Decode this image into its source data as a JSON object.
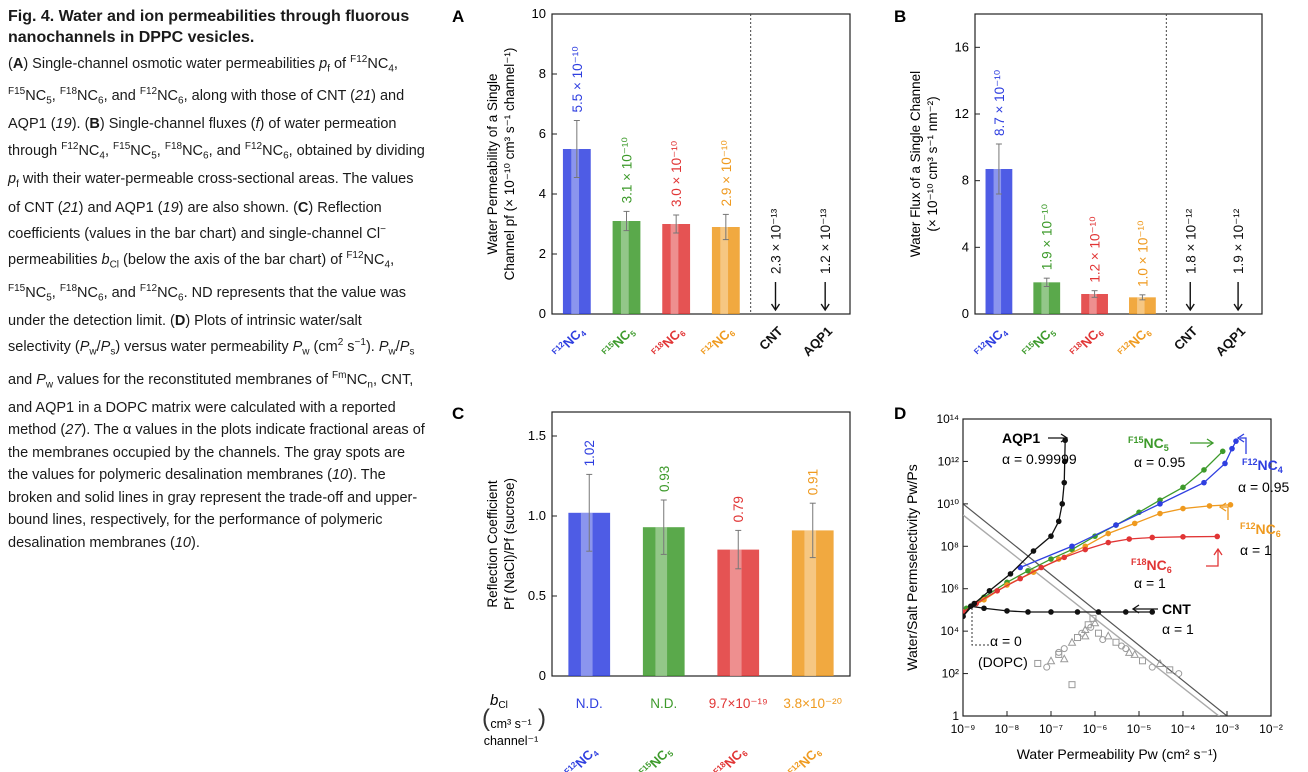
{
  "caption": {
    "title": "Fig. 4. Water and ion permeabilities through fluorous nanochannels in DPPC vesicles.",
    "body_html": "(<b>A</b>) Single-channel osmotic water permeabilities <i>p</i><sub>f</sub> of <sup>F12</sup>NC<sub>4</sub>, <sup>F15</sup>NC<sub>5</sub>, <sup>F18</sup>NC<sub>6</sub>, and <sup>F12</sup>NC<sub>6</sub>, along with those of CNT (<i>21</i>) and AQP1 (<i>19</i>). (<b>B</b>) Single-channel fluxes (<i>f</i>) of water permeation through <sup>F12</sup>NC<sub>4</sub>, <sup>F15</sup>NC<sub>5</sub>, <sup>F18</sup>NC<sub>6</sub>, and <sup>F12</sup>NC<sub>6</sub>, obtained by dividing <i>p</i><sub>f</sub> with their water-permeable cross-sectional areas. The values of CNT (<i>21</i>) and AQP1 (<i>19</i>) are also shown. (<b>C</b>) Reflection coefficients (values in the bar chart) and single-channel Cl<sup>−</sup> permeabilities <i>b</i><sub>Cl</sub> (below the axis of the bar chart) of <sup>F12</sup>NC<sub>4</sub>, <sup>F15</sup>NC<sub>5</sub>, <sup>F18</sup>NC<sub>6</sub>, and <sup>F12</sup>NC<sub>6</sub>. ND represents that the value was under the detection limit. (<b>D</b>) Plots of intrinsic water/salt selectivity (<i>P</i><sub>w</sub>/<i>P</i><sub>s</sub>) versus water permeability <i>P</i><sub>w</sub> (cm<sup>2</sup> s<sup>−1</sup>). <i>P</i><sub>w</sub>/<i>P</i><sub>s</sub> and <i>P</i><sub>w</sub> values for the reconstituted membranes of <sup>Fm</sup>NC<sub>n</sub>, CNT, and AQP1 in a DOPC matrix were calculated with a reported method (<i>27</i>). The α values in the plots indicate fractional areas of the membranes occupied by the channels. The gray spots are the values for polymeric desalination membranes (<i>10</i>). The broken and solid lines in gray represent the trade-off and upper-bound lines, respectively, for the performance of polymeric desalination membranes (<i>10</i>)."
  },
  "colors": {
    "blue": "#2f3fe0",
    "green": "#3d9a2b",
    "red": "#e13535",
    "orange": "#ef9a1f",
    "black": "#111111",
    "gray": "#9a9a9a"
  },
  "chart_data": [
    {
      "panel": "A",
      "type": "bar",
      "ylabel_line1": "Water Permeability of a Single",
      "ylabel_line2": "Channel pf (× 10⁻¹⁰ cm³ s⁻¹ channel⁻¹)",
      "ylim": [
        0,
        10
      ],
      "yticks": [
        "0",
        "2",
        "4",
        "6",
        "8",
        "10"
      ],
      "categories": [
        "F12NC4",
        "F15NC5",
        "F18NC6",
        "F12NC6",
        "CNT",
        "AQP1"
      ],
      "category_labels": [
        {
          "sup": "F12",
          "base": "NC",
          "sub": "4"
        },
        {
          "sup": "F15",
          "base": "NC",
          "sub": "5"
        },
        {
          "sup": "F18",
          "base": "NC",
          "sub": "6"
        },
        {
          "sup": "F12",
          "base": "NC",
          "sub": "6"
        },
        {
          "sup": "",
          "base": "CNT",
          "sub": ""
        },
        {
          "sup": "",
          "base": "AQP1",
          "sub": ""
        }
      ],
      "values": [
        5.5,
        3.1,
        3.0,
        2.9,
        0.0023,
        0.0012
      ],
      "errors": [
        0.95,
        0.32,
        0.3,
        0.42,
        0,
        0
      ],
      "value_labels": [
        "5.5 × 10⁻¹⁰",
        "3.1 × 10⁻¹⁰",
        "3.0 × 10⁻¹⁰",
        "2.9 × 10⁻¹⁰",
        "2.3 × 10⁻¹³",
        "1.2 × 10⁻¹³"
      ]
    },
    {
      "panel": "B",
      "type": "bar",
      "ylabel_line1": "Water Flux of a Single Channel",
      "ylabel_line2": "(× 10⁻¹⁰ cm³ s⁻¹ nm⁻²)",
      "ylim": [
        0,
        18
      ],
      "yticks": [
        "0",
        "4",
        "8",
        "12",
        "16"
      ],
      "categories": [
        "F12NC4",
        "F15NC5",
        "F18NC6",
        "F12NC6",
        "CNT",
        "AQP1"
      ],
      "category_labels": [
        {
          "sup": "F12",
          "base": "NC",
          "sub": "4"
        },
        {
          "sup": "F15",
          "base": "NC",
          "sub": "5"
        },
        {
          "sup": "F18",
          "base": "NC",
          "sub": "6"
        },
        {
          "sup": "F12",
          "base": "NC",
          "sub": "6"
        },
        {
          "sup": "",
          "base": "CNT",
          "sub": ""
        },
        {
          "sup": "",
          "base": "AQP1",
          "sub": ""
        }
      ],
      "values": [
        8.7,
        1.9,
        1.2,
        1.0,
        0.018,
        0.019
      ],
      "errors": [
        1.5,
        0.25,
        0.2,
        0.15,
        0,
        0
      ],
      "value_labels": [
        "8.7 × 10⁻¹⁰",
        "1.9 × 10⁻¹⁰",
        "1.2 × 10⁻¹⁰",
        "1.0 × 10⁻¹⁰",
        "1.8 × 10⁻¹²",
        "1.9 × 10⁻¹²"
      ]
    },
    {
      "panel": "C",
      "type": "bar",
      "ylabel_line1": "Reflection Coefficient",
      "ylabel_line2": "Pf (NaCl)/Pf (sucrose)",
      "ylim": [
        0,
        1.65
      ],
      "yticks": [
        "0",
        "0.5",
        "1.0",
        "1.5"
      ],
      "categories": [
        "F12NC4",
        "F15NC5",
        "F18NC6",
        "F12NC6"
      ],
      "category_labels": [
        {
          "sup": "F12",
          "base": "NC",
          "sub": "4"
        },
        {
          "sup": "F15",
          "base": "NC",
          "sub": "5"
        },
        {
          "sup": "F18",
          "base": "NC",
          "sub": "6"
        },
        {
          "sup": "F12",
          "base": "NC",
          "sub": "6"
        }
      ],
      "values": [
        1.02,
        0.93,
        0.79,
        0.91
      ],
      "errors": [
        0.24,
        0.17,
        0.12,
        0.17
      ],
      "value_labels": [
        "1.02",
        "0.93",
        "0.79",
        "0.91"
      ],
      "bcl_label": "bCl",
      "bcl_unit_line1": "cm³ s⁻¹",
      "bcl_unit_line2": "channel⁻¹",
      "bcl_values": [
        "N.D.",
        "N.D.",
        "9.7×10⁻¹⁹",
        "3.8×10⁻²⁰"
      ]
    },
    {
      "panel": "D",
      "type": "scatter",
      "xlabel": "Water Permeability Pw (cm² s⁻¹)",
      "ylabel": "Water/Salt Permselectivity Pw/Ps",
      "xscale": "log",
      "yscale": "log",
      "xlim": [
        1e-09,
        0.01
      ],
      "ylim": [
        1,
        100000000000000.0
      ],
      "xticks": [
        "10⁻⁹",
        "10⁻⁸",
        "10⁻⁷",
        "10⁻⁶",
        "10⁻⁵",
        "10⁻⁴",
        "10⁻³",
        "10⁻²"
      ],
      "yticks": [
        "1",
        "10²",
        "10⁴",
        "10⁶",
        "10⁸",
        "10¹⁰",
        "10¹²",
        "10¹⁴"
      ],
      "series": [
        {
          "name": "AQP1",
          "alpha": "α = 0.99999",
          "color": "black",
          "x": [
            1e-09,
            1.8e-09,
            4e-09,
            1.2e-08,
            4e-08,
            1e-07,
            1.5e-07,
            1.8e-07,
            2e-07,
            2.05e-07,
            2.1e-07
          ],
          "y": [
            50000.0,
            200000.0,
            800000.0,
            5000000.0,
            60000000.0,
            300000000.0,
            1500000000.0,
            10000000000.0,
            100000000000.0,
            1000000000000.0,
            10000000000000.0
          ]
        },
        {
          "name": "CNT",
          "alpha": "α = 1",
          "color": "black",
          "x": [
            1e-09,
            1.5e-09,
            3e-09,
            1e-08,
            3e-08,
            1e-07,
            4e-07,
            1.2e-06,
            5e-06,
            2e-05
          ],
          "y": [
            50000.0,
            150000.0,
            120000.0,
            90000.0,
            80000.0,
            80000.0,
            80000.0,
            80000.0,
            80000.0,
            80000.0
          ]
        },
        {
          "name": "F15NC5",
          "alpha": "α = 0.95",
          "color": "green",
          "x": [
            1.2e-09,
            3e-09,
            1e-08,
            3e-08,
            1e-07,
            3e-07,
            1e-06,
            3e-06,
            1e-05,
            3e-05,
            0.0001,
            0.0003,
            0.0008
          ],
          "y": [
            120000.0,
            400000.0,
            2000000.0,
            7000000.0,
            25000000.0,
            70000000.0,
            300000000.0,
            1000000000.0,
            4000000000.0,
            15000000000.0,
            60000000000.0,
            400000000000.0,
            3000000000000.0
          ]
        },
        {
          "name": "F12NC4",
          "alpha": "α = 0.95",
          "color": "blue",
          "x": [
            2e-08,
            3e-07,
            3e-06,
            3e-05,
            0.0003,
            0.0009,
            0.0013,
            0.0016
          ],
          "y": [
            10000000.0,
            100000000.0,
            1000000000.0,
            10000000000.0,
            100000000000.0,
            800000000000.0,
            4000000000000.0,
            9000000000000.0
          ]
        },
        {
          "name": "F12NC6",
          "alpha": "α = 1",
          "color": "orange",
          "x": [
            1e-09,
            3e-09,
            1e-08,
            4e-08,
            1.5e-07,
            6e-07,
            2e-06,
            8e-06,
            3e-05,
            0.0001,
            0.0004,
            0.0012
          ],
          "y": [
            80000.0,
            300000.0,
            1500000.0,
            6000000.0,
            25000000.0,
            100000000.0,
            400000000.0,
            1200000000.0,
            3500000000.0,
            6000000000.0,
            8000000000.0,
            9000000000.0
          ]
        },
        {
          "name": "F18NC6",
          "alpha": "α = 1",
          "color": "red",
          "x": [
            1e-09,
            2e-09,
            6e-09,
            2e-08,
            6e-08,
            2e-07,
            6e-07,
            2e-06,
            6e-06,
            2e-05,
            0.0001,
            0.0006
          ],
          "y": [
            80000.0,
            200000.0,
            800000.0,
            3000000.0,
            10000000.0,
            30000000.0,
            70000000.0,
            150000000.0,
            220000000.0,
            260000000.0,
            280000000.0,
            290000000.0
          ]
        },
        {
          "name": "polymeric membranes",
          "color": "gray",
          "x": [
            5e-08,
            8e-08,
            1e-07,
            1.5e-07,
            2e-07,
            3e-07,
            4e-07,
            5e-07,
            6e-07,
            7e-07,
            8e-07,
            1e-06,
            1.2e-06,
            1.5e-06,
            2e-06,
            3e-06,
            5e-06,
            8e-06,
            1.2e-05,
            2e-05,
            3e-05,
            5e-05,
            8e-05,
            2e-07,
            3e-07,
            1.5e-07,
            6e-07,
            9e-07,
            4e-06,
            6e-06
          ],
          "y": [
            300,
            200,
            400,
            800,
            1500,
            3000,
            5000,
            8000,
            12000.0,
            20000.0,
            15000.0,
            25000.0,
            8000,
            4000,
            6000,
            3000,
            1500,
            800,
            400,
            200,
            300,
            150,
            100,
            500,
            30,
            1000,
            6000,
            40000.0,
            2000,
            1000
          ]
        }
      ],
      "ref_lines": [
        {
          "name": "upper-bound",
          "style": "solid",
          "x": [
            1e-09,
            0.001
          ],
          "y": [
            10000000000.0,
            1
          ]
        },
        {
          "name": "trade-off",
          "style": "broken",
          "x": [
            1e-09,
            0.001
          ],
          "y": [
            3000000000.0,
            0.5
          ]
        }
      ],
      "annotations": {
        "aqp1": "AQP1",
        "aqp1_alpha": "α = 0.99999",
        "cnt": "CNT",
        "cnt_alpha": "α = 1",
        "f15_sup": "F15",
        "f15_base": "NC",
        "f15_sub": "5",
        "f15_alpha": "α = 0.95",
        "f12nc4_sup": "F12",
        "f12nc4_base": "NC",
        "f12nc4_sub": "4",
        "f12nc4_alpha": "α = 0.95",
        "f12nc6_sup": "F12",
        "f12nc6_base": "NC",
        "f12nc6_sub": "6",
        "f12nc6_alpha": "α = 1",
        "f18_sup": "F18",
        "f18_base": "NC",
        "f18_sub": "6",
        "f18_alpha": "α = 1",
        "dopc_alpha": "α = 0",
        "dopc": "(DOPC)"
      }
    }
  ],
  "panel_letters": [
    "A",
    "B",
    "C",
    "D"
  ]
}
